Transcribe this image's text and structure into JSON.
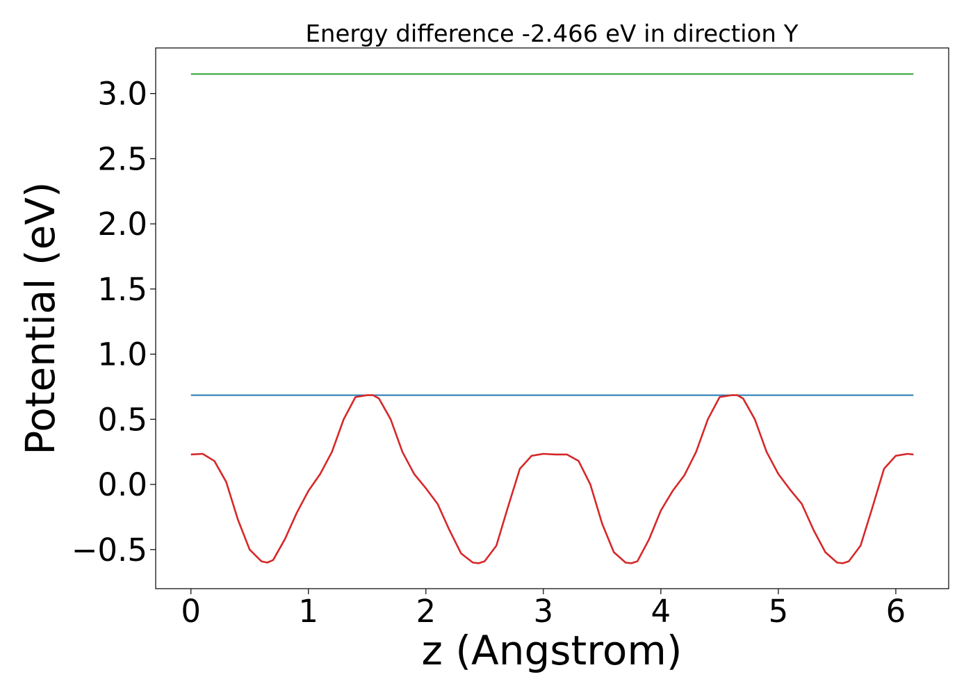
{
  "chart_data": {
    "type": "line",
    "title": "Energy difference -2.466 eV in direction Y",
    "xlabel": "z (Angstrom)",
    "ylabel": "Potential (eV)",
    "xlim": [
      -0.3,
      6.45
    ],
    "ylim": [
      -0.8,
      3.35
    ],
    "xticks": [
      0,
      1,
      2,
      3,
      4,
      5,
      6
    ],
    "xtick_labels": [
      "0",
      "1",
      "2",
      "3",
      "4",
      "5",
      "6"
    ],
    "yticks": [
      -0.5,
      0.0,
      0.5,
      1.0,
      1.5,
      2.0,
      2.5,
      3.0
    ],
    "ytick_labels": [
      "−0.5",
      "0.0",
      "0.5",
      "1.0",
      "1.5",
      "2.0",
      "2.5",
      "3.0"
    ],
    "grid": false,
    "legend": "none",
    "series": [
      {
        "color": "#2ca02c",
        "x": [
          0,
          6.15
        ],
        "y": [
          3.15,
          3.15
        ]
      },
      {
        "color": "#1f77b4",
        "x": [
          0,
          6.15
        ],
        "y": [
          0.685,
          0.685
        ]
      },
      {
        "color": "#d62728",
        "x": [
          0.0,
          0.1,
          0.2,
          0.3,
          0.4,
          0.5,
          0.6,
          0.65,
          0.7,
          0.8,
          0.9,
          1.0,
          1.1,
          1.2,
          1.3,
          1.4,
          1.5,
          1.55,
          1.6,
          1.7,
          1.8,
          1.9,
          2.0,
          2.1,
          2.2,
          2.3,
          2.4,
          2.45,
          2.5,
          2.6,
          2.7,
          2.8,
          2.9,
          3.0,
          3.1,
          3.2,
          3.3,
          3.4,
          3.5,
          3.6,
          3.7,
          3.75,
          3.8,
          3.9,
          4.0,
          4.1,
          4.2,
          4.3,
          4.4,
          4.5,
          4.6,
          4.65,
          4.7,
          4.8,
          4.9,
          5.0,
          5.1,
          5.2,
          5.3,
          5.4,
          5.5,
          5.55,
          5.6,
          5.7,
          5.8,
          5.9,
          6.0,
          6.1,
          6.15
        ],
        "y": [
          0.23,
          0.235,
          0.18,
          0.02,
          -0.27,
          -0.5,
          -0.59,
          -0.6,
          -0.58,
          -0.42,
          -0.22,
          -0.05,
          0.08,
          0.25,
          0.5,
          0.67,
          0.685,
          0.685,
          0.66,
          0.5,
          0.25,
          0.08,
          -0.03,
          -0.15,
          -0.35,
          -0.53,
          -0.6,
          -0.605,
          -0.59,
          -0.47,
          -0.17,
          0.12,
          0.22,
          0.235,
          0.23,
          0.23,
          0.18,
          0.0,
          -0.3,
          -0.52,
          -0.6,
          -0.605,
          -0.59,
          -0.42,
          -0.2,
          -0.05,
          0.07,
          0.25,
          0.5,
          0.67,
          0.685,
          0.685,
          0.66,
          0.5,
          0.25,
          0.08,
          -0.04,
          -0.15,
          -0.35,
          -0.52,
          -0.6,
          -0.605,
          -0.59,
          -0.47,
          -0.18,
          0.12,
          0.22,
          0.235,
          0.23
        ]
      }
    ]
  }
}
